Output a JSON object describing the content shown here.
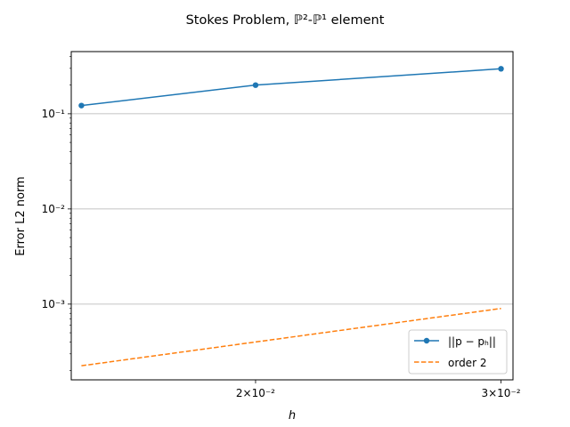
{
  "chart_data": {
    "type": "line",
    "title": "Stokes Problem, ℙ²-ℙ¹ element",
    "xlabel": "h",
    "ylabel": "Error L2 norm",
    "x_scale": "log",
    "y_scale": "log",
    "xlim": [
      0.01475,
      0.0306
    ],
    "ylim": [
      0.00016,
      0.45
    ],
    "x_ticks": [
      {
        "value": 0.02,
        "label": "2×10⁻²"
      },
      {
        "value": 0.03,
        "label": "3×10⁻²"
      }
    ],
    "y_ticks": [
      {
        "value": 0.001,
        "label": "10⁻³"
      },
      {
        "value": 0.01,
        "label": "10⁻²"
      },
      {
        "value": 0.1,
        "label": "10⁻¹"
      }
    ],
    "grid": "y-major",
    "legend_position": "lower right",
    "series": [
      {
        "name": "||p − pₕ||",
        "color": "#1f77b4",
        "style": "solid",
        "marker": "circle",
        "x": [
          0.015,
          0.02,
          0.03
        ],
        "y": [
          0.122,
          0.2,
          0.297
        ]
      },
      {
        "name": "order 2",
        "color": "#ff7f0e",
        "style": "dashed",
        "marker": "none",
        "x": [
          0.015,
          0.02,
          0.03
        ],
        "y": [
          0.000225,
          0.0004,
          0.0009
        ]
      }
    ]
  }
}
